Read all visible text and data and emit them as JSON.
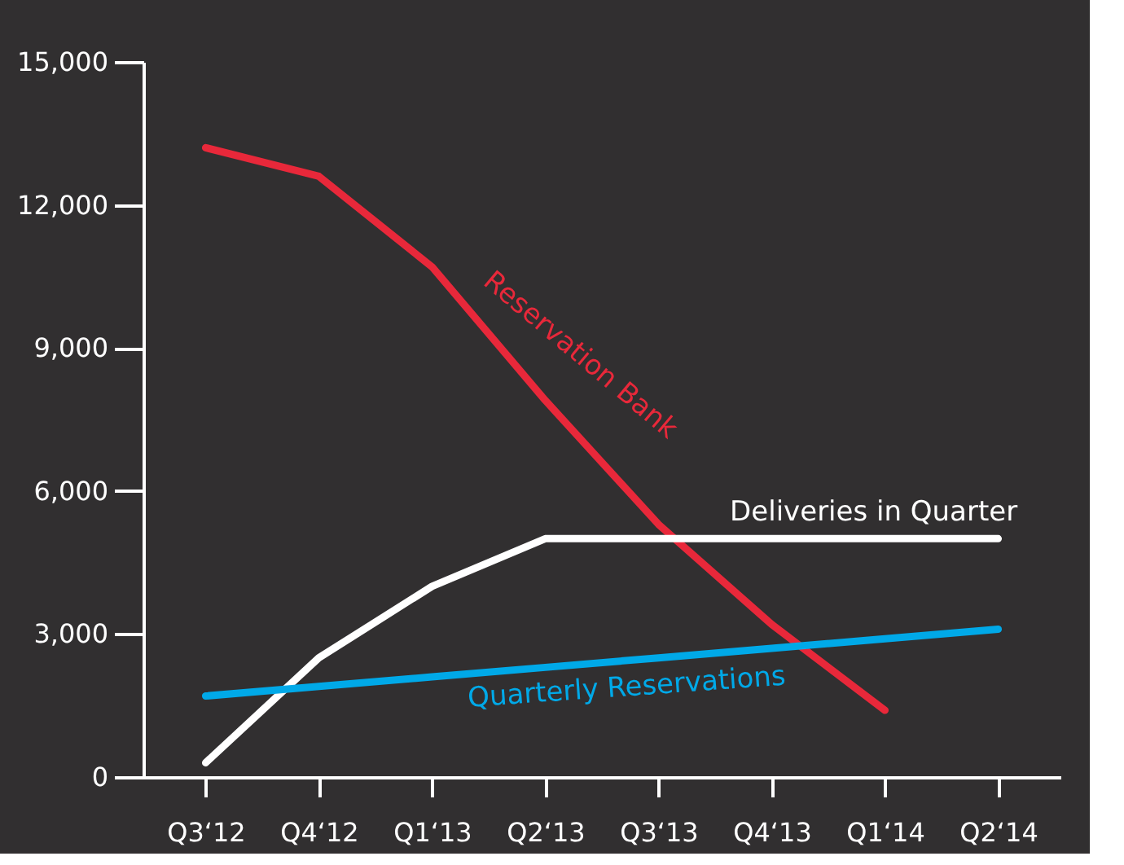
{
  "chart_data": {
    "type": "line",
    "categories": [
      "Q3‘12",
      "Q4‘12",
      "Q1‘13",
      "Q2‘13",
      "Q3‘13",
      "Q4‘13",
      "Q1‘14",
      "Q2‘14"
    ],
    "ylim": [
      0,
      15000
    ],
    "yticks": [
      0,
      {
        "value": 3000,
        "label": "3,000"
      },
      {
        "value": 6000,
        "label": "6,000"
      },
      {
        "value": 9000,
        "label": "9,000"
      },
      {
        "value": 12000,
        "label": "12,000"
      },
      {
        "value": 15000,
        "label": "15,000"
      }
    ],
    "grid": false,
    "legend": false,
    "marker": "none",
    "line_style": "solid",
    "series": [
      {
        "name": "Reservation Bank",
        "color": "#e8283a",
        "values": [
          13200,
          12600,
          10700,
          7900,
          5300,
          3200,
          1400,
          null
        ]
      },
      {
        "name": "Deliveries in Quarter",
        "color": "#ffffff",
        "values": [
          300,
          2500,
          4000,
          5000,
          5000,
          5000,
          5000,
          5000
        ]
      },
      {
        "name": "Quarterly Reservations",
        "color": "#00a9e8",
        "values": [
          1700,
          1900,
          2100,
          2300,
          2500,
          2700,
          2900,
          3100
        ]
      }
    ]
  }
}
